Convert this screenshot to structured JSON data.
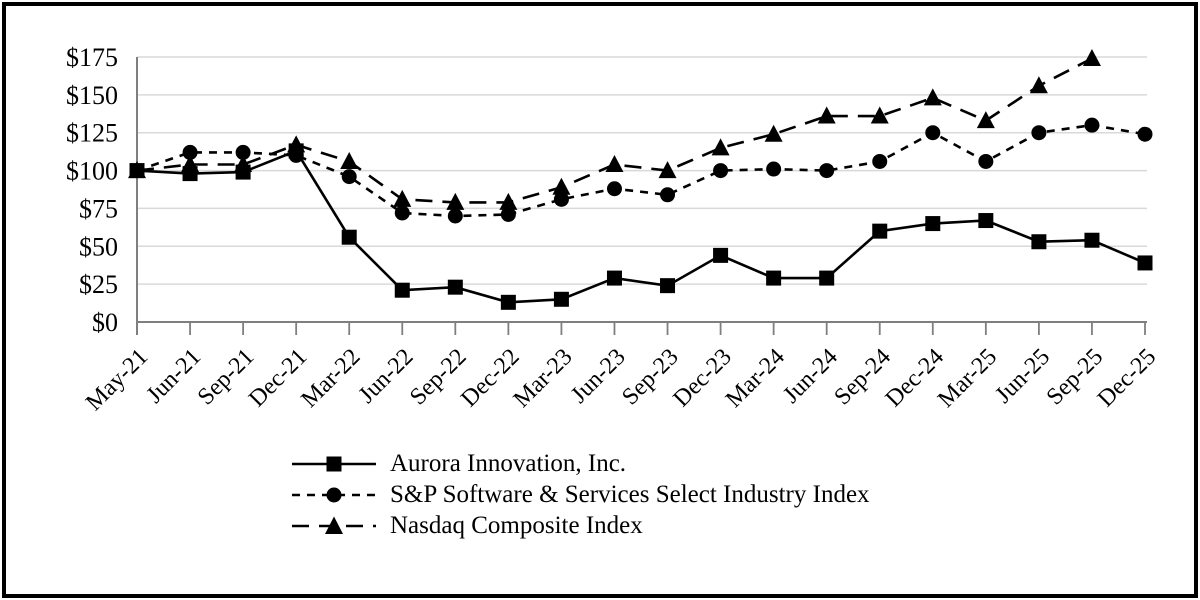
{
  "chart_data": {
    "type": "line",
    "title": "",
    "categories": [
      "May-21",
      "Jun-21",
      "Sep-21",
      "Dec-21",
      "Mar-22",
      "Jun-22",
      "Sep-22",
      "Dec-22",
      "Mar-23",
      "Jun-23",
      "Sep-23",
      "Dec-23",
      "Mar-24",
      "Jun-24",
      "Sep-24",
      "Dec-24",
      "Mar-25",
      "Jun-25",
      "Sep-25",
      "Dec-25"
    ],
    "series": [
      {
        "name": "Aurora Innovation, Inc.",
        "marker": "square",
        "line_style": "solid",
        "values": [
          100,
          98,
          99,
          113,
          56,
          21,
          23,
          13,
          15,
          29,
          24,
          44,
          29,
          29,
          60,
          65,
          67,
          53,
          54,
          39
        ]
      },
      {
        "name": "S&P Software & Services Select Industry Index",
        "marker": "circle",
        "line_style": "short-dash",
        "values": [
          100,
          112,
          112,
          110,
          96,
          72,
          70,
          71,
          81,
          88,
          84,
          100,
          101,
          100,
          106,
          125,
          106,
          125,
          130,
          124
        ]
      },
      {
        "name": "Nasdaq Composite Index",
        "marker": "triangle",
        "line_style": "long-dash",
        "values": [
          100,
          104,
          104,
          117,
          106,
          81,
          79,
          79,
          89,
          104,
          100,
          115,
          124,
          136,
          136,
          148,
          133,
          156,
          174,
          null
        ]
      }
    ],
    "y_axis": {
      "min": 0,
      "max": 175,
      "step": 25,
      "tick_labels": [
        "$0",
        "$25",
        "$50",
        "$75",
        "$100",
        "$125",
        "$150",
        "$175"
      ]
    },
    "x_axis": {
      "label_rotation_deg": -45
    },
    "grid": "horizontal",
    "legend_position": "bottom-left",
    "colors": {
      "series": "#000000",
      "gridline": "#d9d9d9",
      "axis": "#7f7f7f",
      "background": "#ffffff",
      "border": "#000000"
    }
  }
}
